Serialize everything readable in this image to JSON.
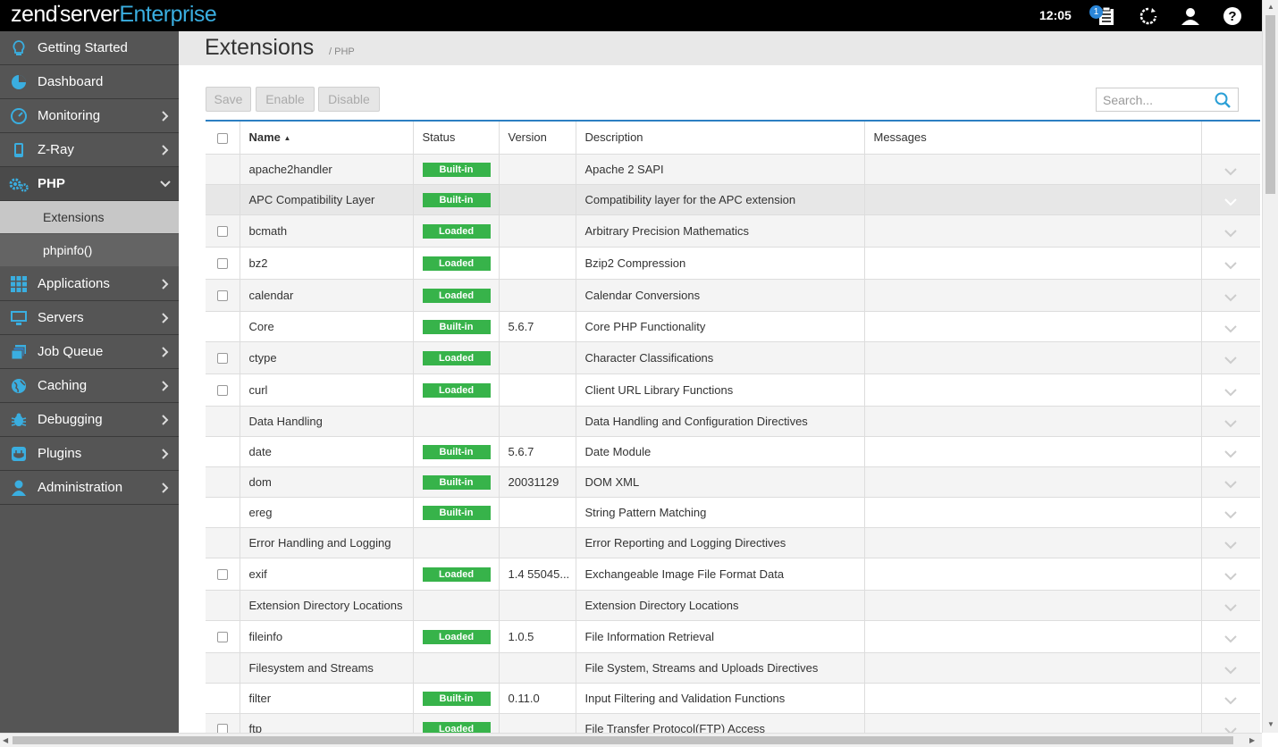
{
  "topbar": {
    "logo_zend": "zend",
    "logo_server": "server",
    "logo_enterprise": "Enterprise",
    "clock": "12:05",
    "notification_count": "1"
  },
  "sidebar": {
    "items": [
      {
        "label": "Getting Started",
        "icon": "lightbulb-icon"
      },
      {
        "label": "Dashboard",
        "icon": "dashboard-icon"
      },
      {
        "label": "Monitoring",
        "icon": "monitoring-icon"
      },
      {
        "label": "Z-Ray",
        "icon": "mobile-icon"
      },
      {
        "label": "PHP",
        "icon": "gears-icon"
      },
      {
        "label": "Applications",
        "icon": "grid-icon"
      },
      {
        "label": "Servers",
        "icon": "monitor-icon"
      },
      {
        "label": "Job Queue",
        "icon": "stack-icon"
      },
      {
        "label": "Caching",
        "icon": "globe-icon"
      },
      {
        "label": "Debugging",
        "icon": "bug-icon"
      },
      {
        "label": "Plugins",
        "icon": "plug-icon"
      },
      {
        "label": "Administration",
        "icon": "user-icon"
      }
    ],
    "php_sub": [
      {
        "label": "Extensions"
      },
      {
        "label": "phpinfo()"
      }
    ]
  },
  "page": {
    "title": "Extensions",
    "breadcrumb": "/ PHP"
  },
  "toolbar": {
    "save": "Save",
    "enable": "Enable",
    "disable": "Disable"
  },
  "search": {
    "placeholder": "Search..."
  },
  "table": {
    "columns": {
      "name": "Name",
      "status": "Status",
      "version": "Version",
      "description": "Description",
      "messages": "Messages"
    },
    "rows": [
      {
        "checkbox": false,
        "name": "apache2handler",
        "status": "Built-in",
        "version": "",
        "description": "Apache 2 SAPI"
      },
      {
        "checkbox": false,
        "name": "APC Compatibility Layer",
        "status": "Built-in",
        "version": "",
        "description": "Compatibility layer for the APC extension"
      },
      {
        "checkbox": true,
        "name": "bcmath",
        "status": "Loaded",
        "version": "",
        "description": "Arbitrary Precision Mathematics"
      },
      {
        "checkbox": true,
        "name": "bz2",
        "status": "Loaded",
        "version": "",
        "description": "Bzip2 Compression"
      },
      {
        "checkbox": true,
        "name": "calendar",
        "status": "Loaded",
        "version": "",
        "description": "Calendar Conversions"
      },
      {
        "checkbox": false,
        "name": "Core",
        "status": "Built-in",
        "version": "5.6.7",
        "description": "Core PHP Functionality"
      },
      {
        "checkbox": true,
        "name": "ctype",
        "status": "Loaded",
        "version": "",
        "description": "Character Classifications"
      },
      {
        "checkbox": true,
        "name": "curl",
        "status": "Loaded",
        "version": "",
        "description": "Client URL Library Functions"
      },
      {
        "checkbox": false,
        "name": "Data Handling",
        "status": "",
        "version": "",
        "description": "Data Handling and Configuration Directives"
      },
      {
        "checkbox": false,
        "name": "date",
        "status": "Built-in",
        "version": "5.6.7",
        "description": "Date Module"
      },
      {
        "checkbox": false,
        "name": "dom",
        "status": "Built-in",
        "version": "20031129",
        "description": "DOM XML"
      },
      {
        "checkbox": false,
        "name": "ereg",
        "status": "Built-in",
        "version": "",
        "description": "String Pattern Matching"
      },
      {
        "checkbox": false,
        "name": "Error Handling and Logging",
        "status": "",
        "version": "",
        "description": "Error Reporting and Logging Directives"
      },
      {
        "checkbox": true,
        "name": "exif",
        "status": "Loaded",
        "version": "1.4 55045...",
        "description": "Exchangeable Image File Format Data"
      },
      {
        "checkbox": false,
        "name": "Extension Directory Locations",
        "status": "",
        "version": "",
        "description": "Extension Directory Locations"
      },
      {
        "checkbox": true,
        "name": "fileinfo",
        "status": "Loaded",
        "version": "1.0.5",
        "description": "File Information Retrieval"
      },
      {
        "checkbox": false,
        "name": "Filesystem and Streams",
        "status": "",
        "version": "",
        "description": "File System, Streams and Uploads Directives"
      },
      {
        "checkbox": false,
        "name": "filter",
        "status": "Built-in",
        "version": "0.11.0",
        "description": "Input Filtering and Validation Functions"
      },
      {
        "checkbox": true,
        "name": "ftp",
        "status": "Loaded",
        "version": "",
        "description": "File Transfer Protocol(FTP) Access"
      }
    ]
  },
  "colors": {
    "accent": "#3aaee0",
    "status_green": "#37b34a",
    "table_top_border": "#2c7fc2"
  }
}
